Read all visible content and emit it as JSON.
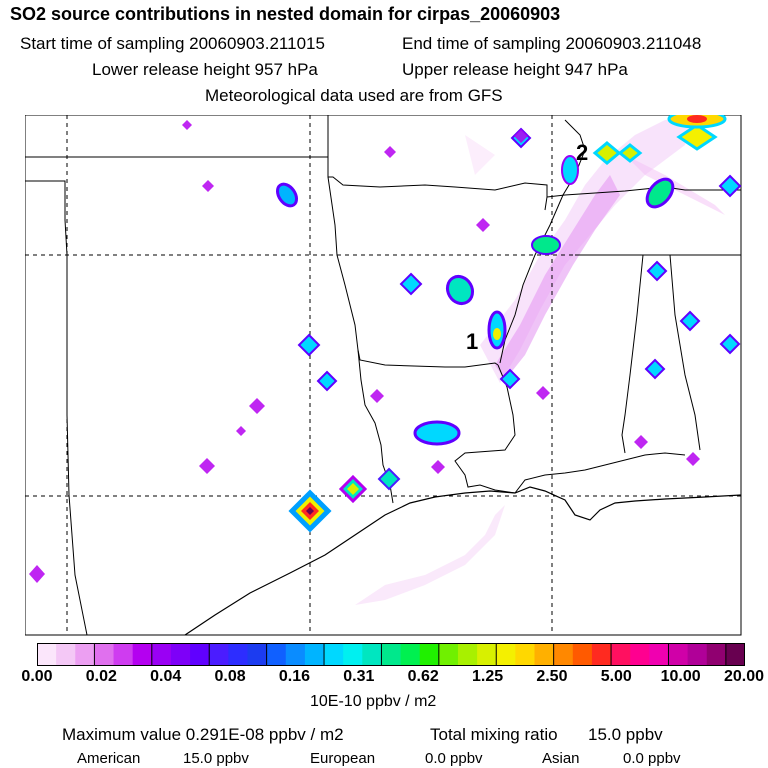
{
  "header": {
    "title": "SO2 source contributions in nested domain for cirpas_20060903",
    "start_time": "Start time of sampling 20060903.211015",
    "end_time": "End time of sampling 20060903.211048",
    "lower_release": "Lower release height  957 hPa",
    "upper_release": "Upper release height  947 hPa",
    "met_data": "Meteorological data used are from GFS"
  },
  "map": {
    "markers": [
      "1",
      "2"
    ]
  },
  "colorbar": {
    "ticks": [
      "0.00",
      "0.02",
      "0.04",
      "0.08",
      "0.16",
      "0.31",
      "0.62",
      "1.25",
      "2.50",
      "5.00",
      "10.00",
      "20.00"
    ],
    "unit": "10E-10 ppbv / m2",
    "colors": [
      "#fbe6fb",
      "#f4c8f6",
      "#ec9ff2",
      "#e070ee",
      "#cf3cf0",
      "#b400f0",
      "#9a00f4",
      "#7e00f8",
      "#6000ff",
      "#4b1cff",
      "#2d2dff",
      "#1c3cf0",
      "#1060ff",
      "#0a8cff",
      "#00b4ff",
      "#00d8ff",
      "#00f0f0",
      "#00e6c0",
      "#00e88c",
      "#00f050",
      "#20f000",
      "#70f000",
      "#a8f000",
      "#d8f000",
      "#f4f000",
      "#ffd800",
      "#ffb000",
      "#ff8800",
      "#ff5a00",
      "#ff2a20",
      "#ff1060",
      "#ff0090",
      "#f000b0",
      "#d000a8",
      "#b00098",
      "#900070",
      "#680050"
    ]
  },
  "summary": {
    "max_value": "Maximum value  0.291E-08 ppbv / m2",
    "total_mixing": "Total mixing ratio",
    "total_value": "15.0 ppbv",
    "american_label": "American",
    "american_value": "15.0 ppbv",
    "european_label": "European",
    "european_value": "0.0 ppbv",
    "asian_label": "Asian",
    "asian_value": "0.0 ppbv"
  }
}
